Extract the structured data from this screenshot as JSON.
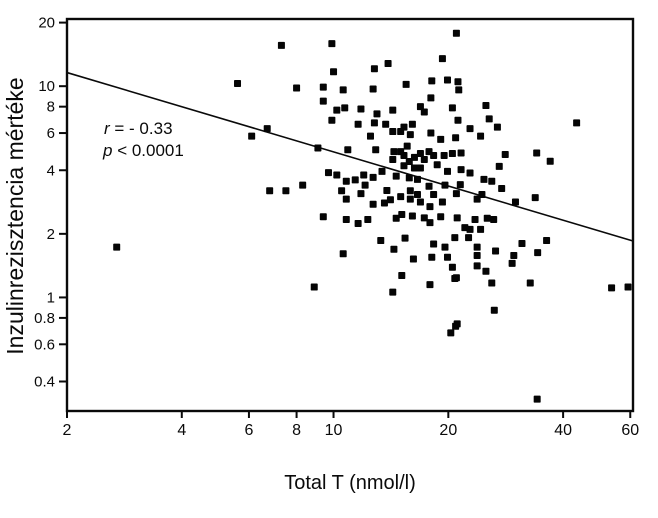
{
  "chart_data": {
    "type": "scatter",
    "title": "",
    "xlabel": "Total T (nmol/l)",
    "ylabel": "Inzulinrezisztencia mértéke",
    "x_scale": "log",
    "y_scale": "log",
    "x_ticks": [
      2,
      4,
      6,
      8,
      10,
      20,
      40,
      60
    ],
    "y_ticks": [
      20,
      10,
      8,
      6,
      4,
      2,
      1,
      0.8,
      0.6,
      0.4
    ],
    "x_range": [
      2,
      61
    ],
    "y_range": [
      0.29,
      20.8
    ],
    "grid": false,
    "legend": "none",
    "marker": "filled-square",
    "point_color": "#050505",
    "line_color": "#0a0a0a",
    "background": "#ffffff",
    "annotation": [
      {
        "var": "r",
        "text": " = - 0.33"
      },
      {
        "var": "p",
        "text": " < 0.0001"
      }
    ],
    "regression_line": {
      "x": [
        2,
        61
      ],
      "y": [
        11.6,
        1.85
      ]
    },
    "points": [
      [
        2.7,
        1.73
      ],
      [
        5.6,
        10.3
      ],
      [
        6.1,
        5.8
      ],
      [
        7.3,
        15.6
      ],
      [
        9.9,
        15.9
      ],
      [
        21,
        17.8
      ],
      [
        12.8,
        12.1
      ],
      [
        13.9,
        12.8
      ],
      [
        19.3,
        13.5
      ],
      [
        8.0,
        9.8
      ],
      [
        9.4,
        9.9
      ],
      [
        10.0,
        11.7
      ],
      [
        10.6,
        9.6
      ],
      [
        12.7,
        9.7
      ],
      [
        15.5,
        10.2
      ],
      [
        18.1,
        10.6
      ],
      [
        19.9,
        10.7
      ],
      [
        21.2,
        10.5
      ],
      [
        9.4,
        8.5
      ],
      [
        10.2,
        7.7
      ],
      [
        10.7,
        7.9
      ],
      [
        11.8,
        7.8
      ],
      [
        13.0,
        7.4
      ],
      [
        14.3,
        7.7
      ],
      [
        16.9,
        8.0
      ],
      [
        18.0,
        8.8
      ],
      [
        20.5,
        7.9
      ],
      [
        17.3,
        7.55
      ],
      [
        6.7,
        6.3
      ],
      [
        9.9,
        6.9
      ],
      [
        11.6,
        6.6
      ],
      [
        12.5,
        5.8
      ],
      [
        12.8,
        6.7
      ],
      [
        13.7,
        6.6
      ],
      [
        14.3,
        6.1
      ],
      [
        15.3,
        6.4
      ],
      [
        15.6,
        5.2
      ],
      [
        16.1,
        6.6
      ],
      [
        18.0,
        6.0
      ],
      [
        19.1,
        5.6
      ],
      [
        20.9,
        5.7
      ],
      [
        15.0,
        6.1
      ],
      [
        15.9,
        5.9
      ],
      [
        9.1,
        5.1
      ],
      [
        10.9,
        5.0
      ],
      [
        12.9,
        5.0
      ],
      [
        14.4,
        4.9
      ],
      [
        9.7,
        3.9
      ],
      [
        10.2,
        3.8
      ],
      [
        10.8,
        3.55
      ],
      [
        11.8,
        3.1
      ],
      [
        12.0,
        3.8
      ],
      [
        12.7,
        3.7
      ],
      [
        13.4,
        3.95
      ],
      [
        14.3,
        4.5
      ],
      [
        15.0,
        4.9
      ],
      [
        15.3,
        4.7
      ],
      [
        15.3,
        4.2
      ],
      [
        15.8,
        4.4
      ],
      [
        16.3,
        4.6
      ],
      [
        16.3,
        4.1
      ],
      [
        16.9,
        4.8
      ],
      [
        17.3,
        4.5
      ],
      [
        17.8,
        4.9
      ],
      [
        18.3,
        4.7
      ],
      [
        18.7,
        4.25
      ],
      [
        19.5,
        4.7
      ],
      [
        20.5,
        4.8
      ],
      [
        16.9,
        4.1
      ],
      [
        19.9,
        3.95
      ],
      [
        11.4,
        3.6
      ],
      [
        12.1,
        3.4
      ],
      [
        14.6,
        3.75
      ],
      [
        15.8,
        3.68
      ],
      [
        16.6,
        3.62
      ],
      [
        6.8,
        3.2
      ],
      [
        7.5,
        3.2
      ],
      [
        8.3,
        3.4
      ],
      [
        10.5,
        3.2
      ],
      [
        13.8,
        3.21
      ],
      [
        12.7,
        2.76
      ],
      [
        13.6,
        2.8
      ],
      [
        15.0,
        3.0
      ],
      [
        15.9,
        3.2
      ],
      [
        16.6,
        3.07
      ],
      [
        17.8,
        3.36
      ],
      [
        18.3,
        3.07
      ],
      [
        19.6,
        3.4
      ],
      [
        21.0,
        3.1
      ],
      [
        10.8,
        2.92
      ],
      [
        14.1,
        2.9
      ],
      [
        15.9,
        2.92
      ],
      [
        16.9,
        2.83
      ],
      [
        17.9,
        2.69
      ],
      [
        19.3,
        2.83
      ],
      [
        15.1,
        2.47
      ],
      [
        16.1,
        2.43
      ],
      [
        9.4,
        2.41
      ],
      [
        10.8,
        2.34
      ],
      [
        11.6,
        2.24
      ],
      [
        12.3,
        2.34
      ],
      [
        14.6,
        2.37
      ],
      [
        17.3,
        2.38
      ],
      [
        17.9,
        2.26
      ],
      [
        19.1,
        2.41
      ],
      [
        20.8,
        1.92
      ],
      [
        13.3,
        1.86
      ],
      [
        15.4,
        1.91
      ],
      [
        14.4,
        1.69
      ],
      [
        10.6,
        1.61
      ],
      [
        16.2,
        1.52
      ],
      [
        18.3,
        1.79
      ],
      [
        19.6,
        1.73
      ],
      [
        18.1,
        1.55
      ],
      [
        19.9,
        1.55
      ],
      [
        20.5,
        1.39
      ],
      [
        15.1,
        1.27
      ],
      [
        20.8,
        1.23
      ],
      [
        8.9,
        1.12
      ],
      [
        17.9,
        1.15
      ],
      [
        14.3,
        1.06
      ],
      [
        20.9,
        0.73
      ],
      [
        20.3,
        0.68
      ],
      [
        21.3,
        9.6
      ],
      [
        25.1,
        8.1
      ],
      [
        21.2,
        6.9
      ],
      [
        25.6,
        7.0
      ],
      [
        26.9,
        6.4
      ],
      [
        22.8,
        6.3
      ],
      [
        24.3,
        5.8
      ],
      [
        43.4,
        6.7
      ],
      [
        21.6,
        4.83
      ],
      [
        28.2,
        4.75
      ],
      [
        34.1,
        4.83
      ],
      [
        37.0,
        4.41
      ],
      [
        27.2,
        4.17
      ],
      [
        21.6,
        4.03
      ],
      [
        22.8,
        3.88
      ],
      [
        21.5,
        3.42
      ],
      [
        24.8,
        3.62
      ],
      [
        26.0,
        3.55
      ],
      [
        27.6,
        3.28
      ],
      [
        24.5,
        3.07
      ],
      [
        23.8,
        2.92
      ],
      [
        33.8,
        2.97
      ],
      [
        30.0,
        2.83
      ],
      [
        21.1,
        2.38
      ],
      [
        22.1,
        2.14
      ],
      [
        23.5,
        2.34
      ],
      [
        25.3,
        2.37
      ],
      [
        26.3,
        2.34
      ],
      [
        22.8,
        2.1
      ],
      [
        24.3,
        2.1
      ],
      [
        22.6,
        1.92
      ],
      [
        23.8,
        1.73
      ],
      [
        23.8,
        1.58
      ],
      [
        26.6,
        1.66
      ],
      [
        29.4,
        1.45
      ],
      [
        29.7,
        1.58
      ],
      [
        31.2,
        1.8
      ],
      [
        34.3,
        1.63
      ],
      [
        36.2,
        1.86
      ],
      [
        23.8,
        1.41
      ],
      [
        25.1,
        1.33
      ],
      [
        21.0,
        1.24
      ],
      [
        26.0,
        1.17
      ],
      [
        32.8,
        1.17
      ],
      [
        53.6,
        1.11
      ],
      [
        59.2,
        1.12
      ],
      [
        26.4,
        0.87
      ],
      [
        21.1,
        0.75
      ],
      [
        34.2,
        0.33
      ]
    ]
  }
}
